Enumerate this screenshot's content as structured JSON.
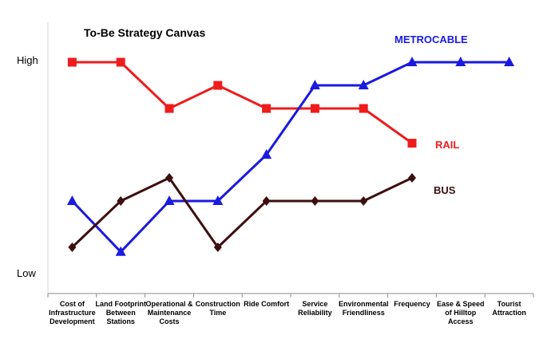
{
  "chart_data": {
    "type": "line",
    "title": "To-Be Strategy Canvas",
    "categories": [
      [
        "Cost of",
        "Infrastructure",
        "Development"
      ],
      [
        "Land Footprint",
        "Between",
        "Stations"
      ],
      [
        "Operational &",
        "Maintenance",
        "Costs"
      ],
      [
        "Construction",
        "Time"
      ],
      [
        "Ride Comfort"
      ],
      [
        "Service",
        "Reliability"
      ],
      [
        "Environmental",
        "Friendliness"
      ],
      [
        "Frequency"
      ],
      [
        "Ease & Speed",
        "of Hilltop",
        "Access"
      ],
      [
        "Tourist",
        "Attraction"
      ]
    ],
    "y_tick_labels": [
      "High",
      "Low"
    ],
    "ylim": [
      0,
      10
    ],
    "y_tick_values": [
      10,
      0.8
    ],
    "grid": false,
    "legend": "none (direct series labels)",
    "series": [
      {
        "name": "RAIL",
        "color": "#ee1c1c",
        "marker": "square",
        "values": [
          10,
          10,
          8,
          9,
          8,
          8,
          8,
          6.5,
          null,
          null
        ]
      },
      {
        "name": "METROCABLE",
        "color": "#1a1ae0",
        "marker": "triangle",
        "values": [
          4,
          1.8,
          4,
          4,
          6,
          9,
          9,
          10,
          10,
          10
        ]
      },
      {
        "name": "BUS",
        "color": "#3d0f0f",
        "marker": "diamond",
        "values": [
          2,
          4,
          5,
          2,
          4,
          4,
          4,
          5,
          null,
          null
        ]
      }
    ]
  }
}
